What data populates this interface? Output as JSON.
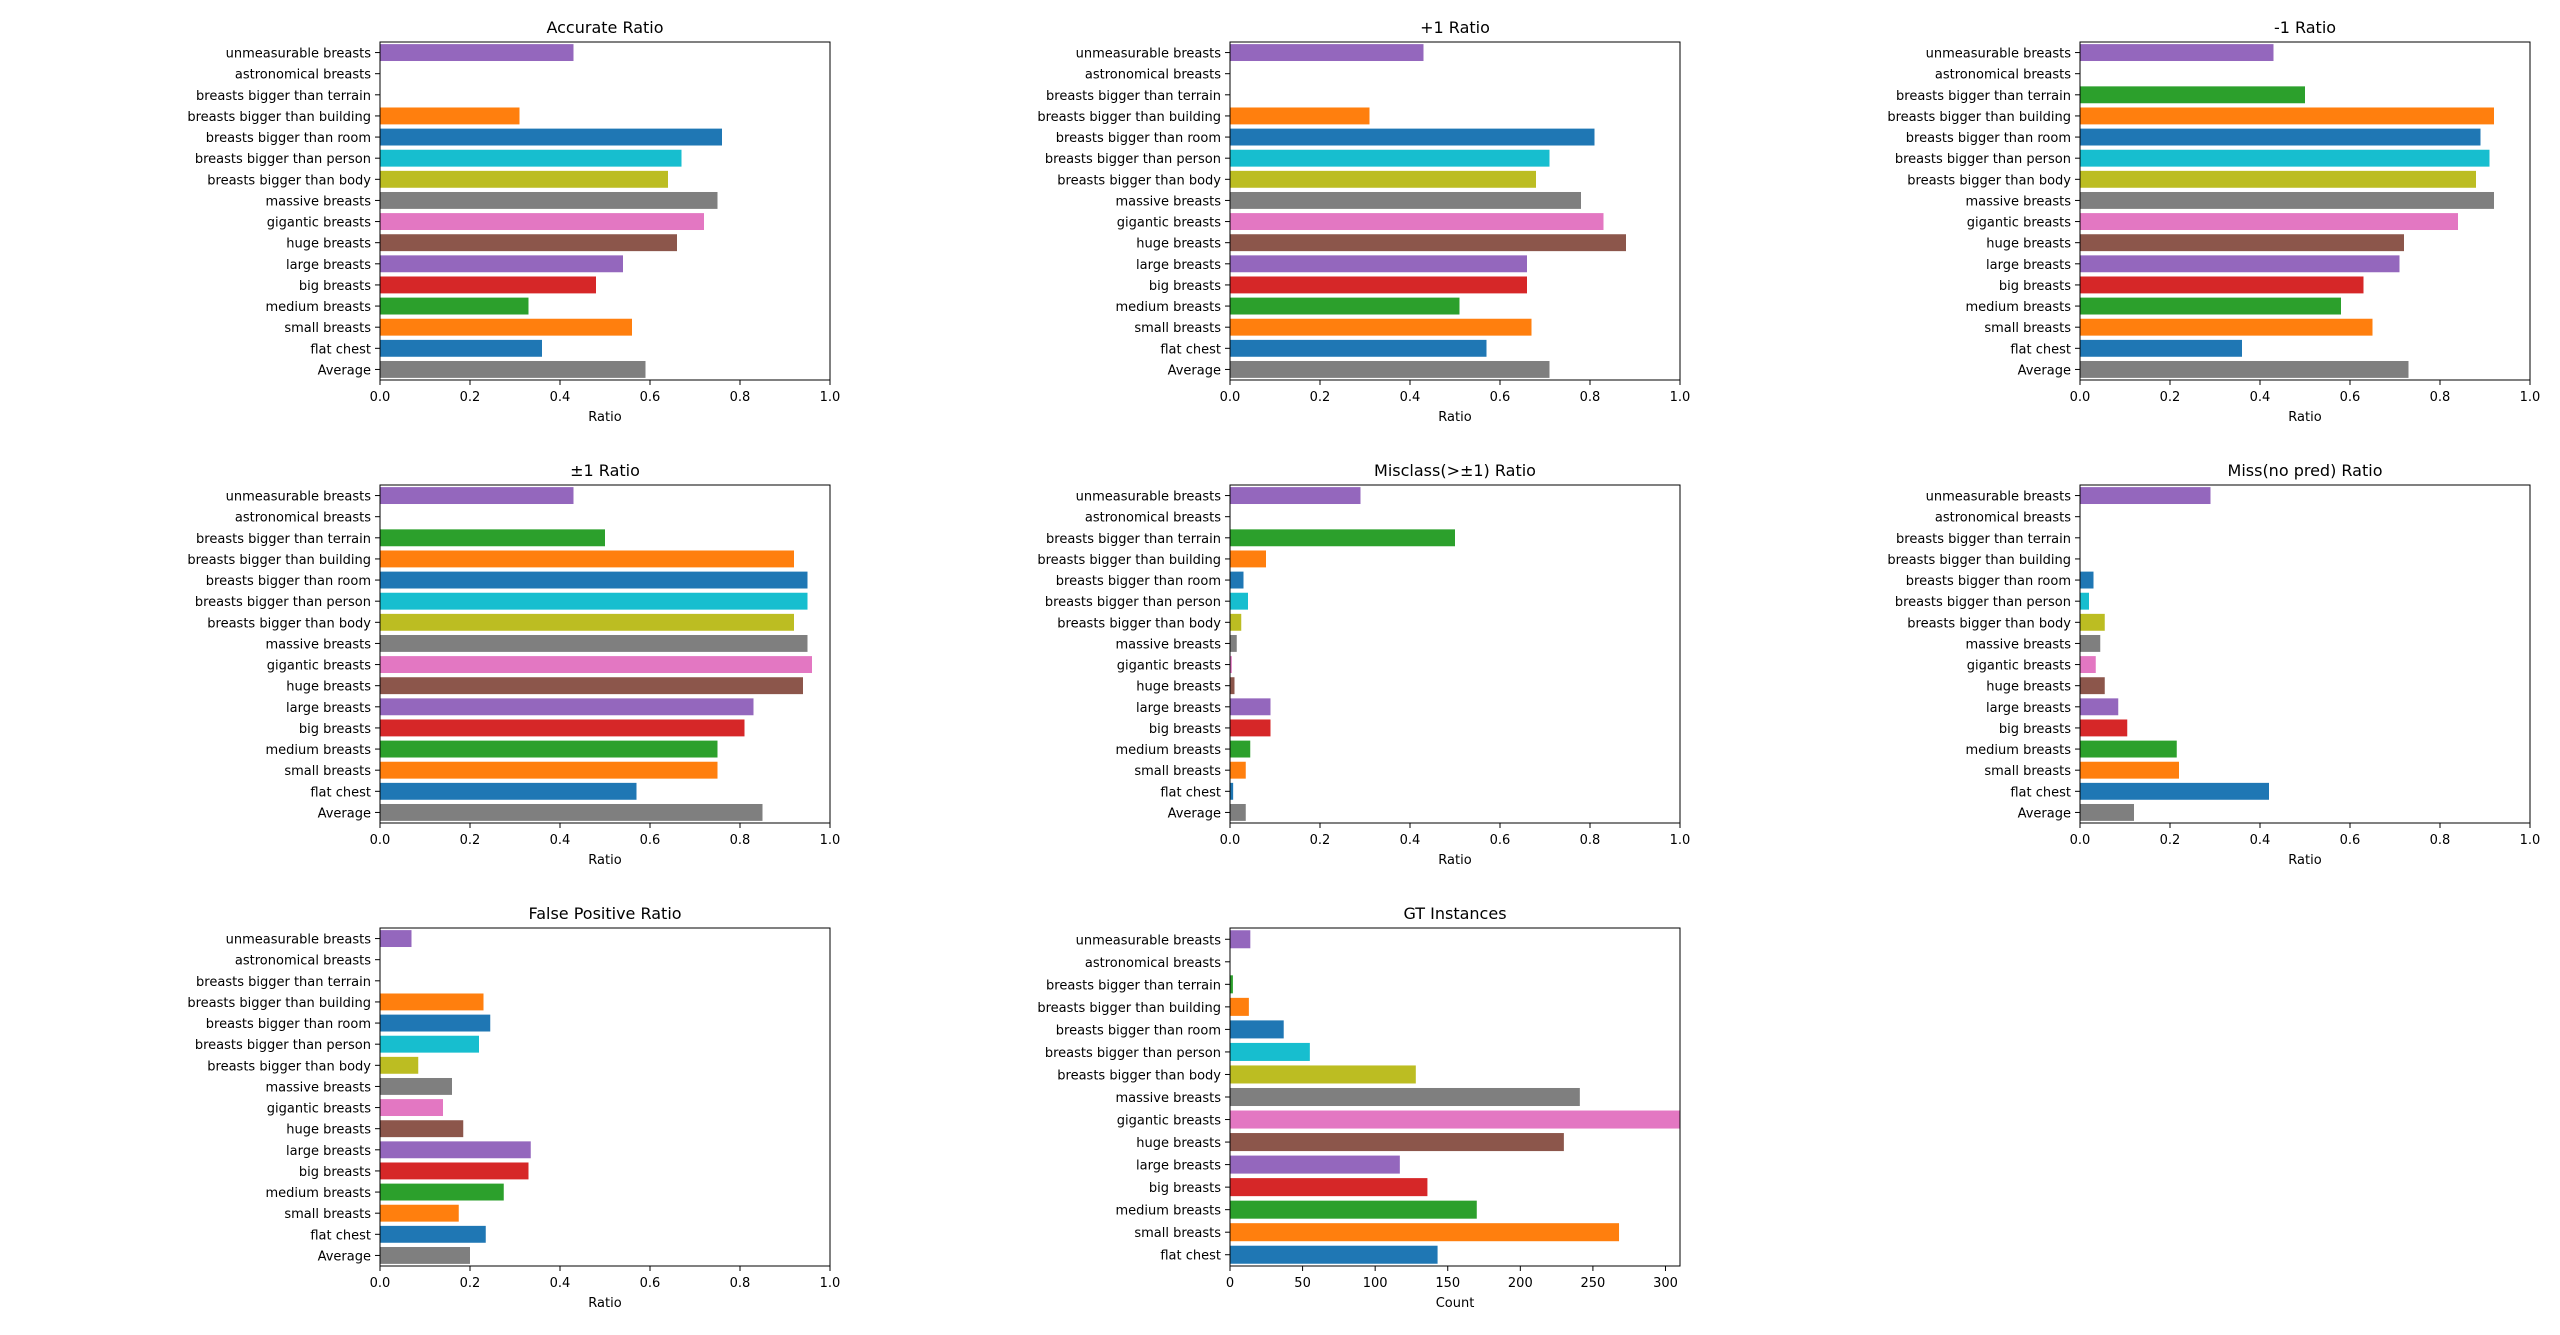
{
  "chart_data": [
    {
      "type": "bar",
      "orientation": "horizontal",
      "title": "Accurate Ratio",
      "xlabel": "Ratio",
      "ylabel": "",
      "xlim": [
        0,
        1
      ],
      "xticks": [
        "0.0",
        "0.2",
        "0.4",
        "0.6",
        "0.8",
        "1.0"
      ],
      "categories": [
        "unmeasurable breasts",
        "astronomical breasts",
        "breasts bigger than terrain",
        "breasts bigger than building",
        "breasts bigger than room",
        "breasts bigger than person",
        "breasts bigger than body",
        "massive breasts",
        "gigantic breasts",
        "huge breasts",
        "large breasts",
        "big breasts",
        "medium breasts",
        "small breasts",
        "flat chest",
        "Average"
      ],
      "values": [
        0.43,
        0,
        0,
        0.31,
        0.76,
        0.67,
        0.64,
        0.75,
        0.72,
        0.66,
        0.54,
        0.48,
        0.33,
        0.56,
        0.36,
        0.59
      ]
    },
    {
      "type": "bar",
      "orientation": "horizontal",
      "title": "+1 Ratio",
      "xlabel": "Ratio",
      "ylabel": "",
      "xlim": [
        0,
        1
      ],
      "xticks": [
        "0.0",
        "0.2",
        "0.4",
        "0.6",
        "0.8",
        "1.0"
      ],
      "categories": [
        "unmeasurable breasts",
        "astronomical breasts",
        "breasts bigger than terrain",
        "breasts bigger than building",
        "breasts bigger than room",
        "breasts bigger than person",
        "breasts bigger than body",
        "massive breasts",
        "gigantic breasts",
        "huge breasts",
        "large breasts",
        "big breasts",
        "medium breasts",
        "small breasts",
        "flat chest",
        "Average"
      ],
      "values": [
        0.43,
        0,
        0,
        0.31,
        0.81,
        0.71,
        0.68,
        0.78,
        0.83,
        0.88,
        0.66,
        0.66,
        0.51,
        0.67,
        0.57,
        0.71
      ]
    },
    {
      "type": "bar",
      "orientation": "horizontal",
      "title": "-1 Ratio",
      "xlabel": "Ratio",
      "ylabel": "",
      "xlim": [
        0,
        1
      ],
      "xticks": [
        "0.0",
        "0.2",
        "0.4",
        "0.6",
        "0.8",
        "1.0"
      ],
      "categories": [
        "unmeasurable breasts",
        "astronomical breasts",
        "breasts bigger than terrain",
        "breasts bigger than building",
        "breasts bigger than room",
        "breasts bigger than person",
        "breasts bigger than body",
        "massive breasts",
        "gigantic breasts",
        "huge breasts",
        "large breasts",
        "big breasts",
        "medium breasts",
        "small breasts",
        "flat chest",
        "Average"
      ],
      "values": [
        0.43,
        0,
        0.5,
        0.92,
        0.89,
        0.91,
        0.88,
        0.92,
        0.84,
        0.72,
        0.71,
        0.63,
        0.58,
        0.65,
        0.36,
        0.73
      ]
    },
    {
      "type": "bar",
      "orientation": "horizontal",
      "title": "±1 Ratio",
      "xlabel": "Ratio",
      "ylabel": "",
      "xlim": [
        0,
        1
      ],
      "xticks": [
        "0.0",
        "0.2",
        "0.4",
        "0.6",
        "0.8",
        "1.0"
      ],
      "categories": [
        "unmeasurable breasts",
        "astronomical breasts",
        "breasts bigger than terrain",
        "breasts bigger than building",
        "breasts bigger than room",
        "breasts bigger than person",
        "breasts bigger than body",
        "massive breasts",
        "gigantic breasts",
        "huge breasts",
        "large breasts",
        "big breasts",
        "medium breasts",
        "small breasts",
        "flat chest",
        "Average"
      ],
      "values": [
        0.43,
        0,
        0.5,
        0.92,
        0.95,
        0.95,
        0.92,
        0.95,
        0.96,
        0.94,
        0.83,
        0.81,
        0.75,
        0.75,
        0.57,
        0.85
      ]
    },
    {
      "type": "bar",
      "orientation": "horizontal",
      "title": "Misclass(>±1) Ratio",
      "xlabel": "Ratio",
      "ylabel": "",
      "xlim": [
        0,
        1
      ],
      "xticks": [
        "0.0",
        "0.2",
        "0.4",
        "0.6",
        "0.8",
        "1.0"
      ],
      "categories": [
        "unmeasurable breasts",
        "astronomical breasts",
        "breasts bigger than terrain",
        "breasts bigger than building",
        "breasts bigger than room",
        "breasts bigger than person",
        "breasts bigger than body",
        "massive breasts",
        "gigantic breasts",
        "huge breasts",
        "large breasts",
        "big breasts",
        "medium breasts",
        "small breasts",
        "flat chest",
        "Average"
      ],
      "values": [
        0.29,
        0,
        0.5,
        0.08,
        0.03,
        0.04,
        0.025,
        0.015,
        0.004,
        0.01,
        0.09,
        0.09,
        0.045,
        0.035,
        0.007,
        0.035
      ]
    },
    {
      "type": "bar",
      "orientation": "horizontal",
      "title": "Miss(no pred) Ratio",
      "xlabel": "Ratio",
      "ylabel": "",
      "xlim": [
        0,
        1
      ],
      "xticks": [
        "0.0",
        "0.2",
        "0.4",
        "0.6",
        "0.8",
        "1.0"
      ],
      "categories": [
        "unmeasurable breasts",
        "astronomical breasts",
        "breasts bigger than terrain",
        "breasts bigger than building",
        "breasts bigger than room",
        "breasts bigger than person",
        "breasts bigger than body",
        "massive breasts",
        "gigantic breasts",
        "huge breasts",
        "large breasts",
        "big breasts",
        "medium breasts",
        "small breasts",
        "flat chest",
        "Average"
      ],
      "values": [
        0.29,
        0,
        0,
        0,
        0.03,
        0.02,
        0.055,
        0.045,
        0.035,
        0.055,
        0.085,
        0.105,
        0.215,
        0.22,
        0.42,
        0.12
      ]
    },
    {
      "type": "bar",
      "orientation": "horizontal",
      "title": "False Positive Ratio",
      "xlabel": "Ratio",
      "ylabel": "",
      "xlim": [
        0,
        1
      ],
      "xticks": [
        "0.0",
        "0.2",
        "0.4",
        "0.6",
        "0.8",
        "1.0"
      ],
      "categories": [
        "unmeasurable breasts",
        "astronomical breasts",
        "breasts bigger than terrain",
        "breasts bigger than building",
        "breasts bigger than room",
        "breasts bigger than person",
        "breasts bigger than body",
        "massive breasts",
        "gigantic breasts",
        "huge breasts",
        "large breasts",
        "big breasts",
        "medium breasts",
        "small breasts",
        "flat chest",
        "Average"
      ],
      "values": [
        0.07,
        0,
        0,
        0.23,
        0.245,
        0.22,
        0.085,
        0.16,
        0.14,
        0.185,
        0.335,
        0.33,
        0.275,
        0.175,
        0.235,
        0.2
      ]
    },
    {
      "type": "bar",
      "orientation": "horizontal",
      "title": "GT Instances",
      "xlabel": "Count",
      "ylabel": "",
      "xlim": [
        0,
        310
      ],
      "xticks": [
        "0",
        "50",
        "100",
        "150",
        "200",
        "250",
        "300"
      ],
      "categories": [
        "unmeasurable breasts",
        "astronomical breasts",
        "breasts bigger than terrain",
        "breasts bigger than building",
        "breasts bigger than room",
        "breasts bigger than person",
        "breasts bigger than body",
        "massive breasts",
        "gigantic breasts",
        "huge breasts",
        "large breasts",
        "big breasts",
        "medium breasts",
        "small breasts",
        "flat chest"
      ],
      "values": [
        14,
        0,
        2,
        13,
        37,
        55,
        128,
        241,
        315,
        230,
        117,
        136,
        170,
        268,
        143
      ]
    }
  ],
  "colors": {
    "unmeasurable breasts": "#9467bd",
    "astronomical breasts": "#8c564b",
    "breasts bigger than terrain": "#2ca02c",
    "breasts bigger than building": "#ff7f0e",
    "breasts bigger than room": "#1f77b4",
    "breasts bigger than person": "#17becf",
    "breasts bigger than body": "#bcbd22",
    "massive breasts": "#7f7f7f",
    "gigantic breasts": "#e377c2",
    "huge breasts": "#8c564b",
    "large breasts": "#9467bd",
    "big breasts": "#d62728",
    "medium breasts": "#2ca02c",
    "small breasts": "#ff7f0e",
    "flat chest": "#1f77b4",
    "Average": "#7f7f7f"
  }
}
